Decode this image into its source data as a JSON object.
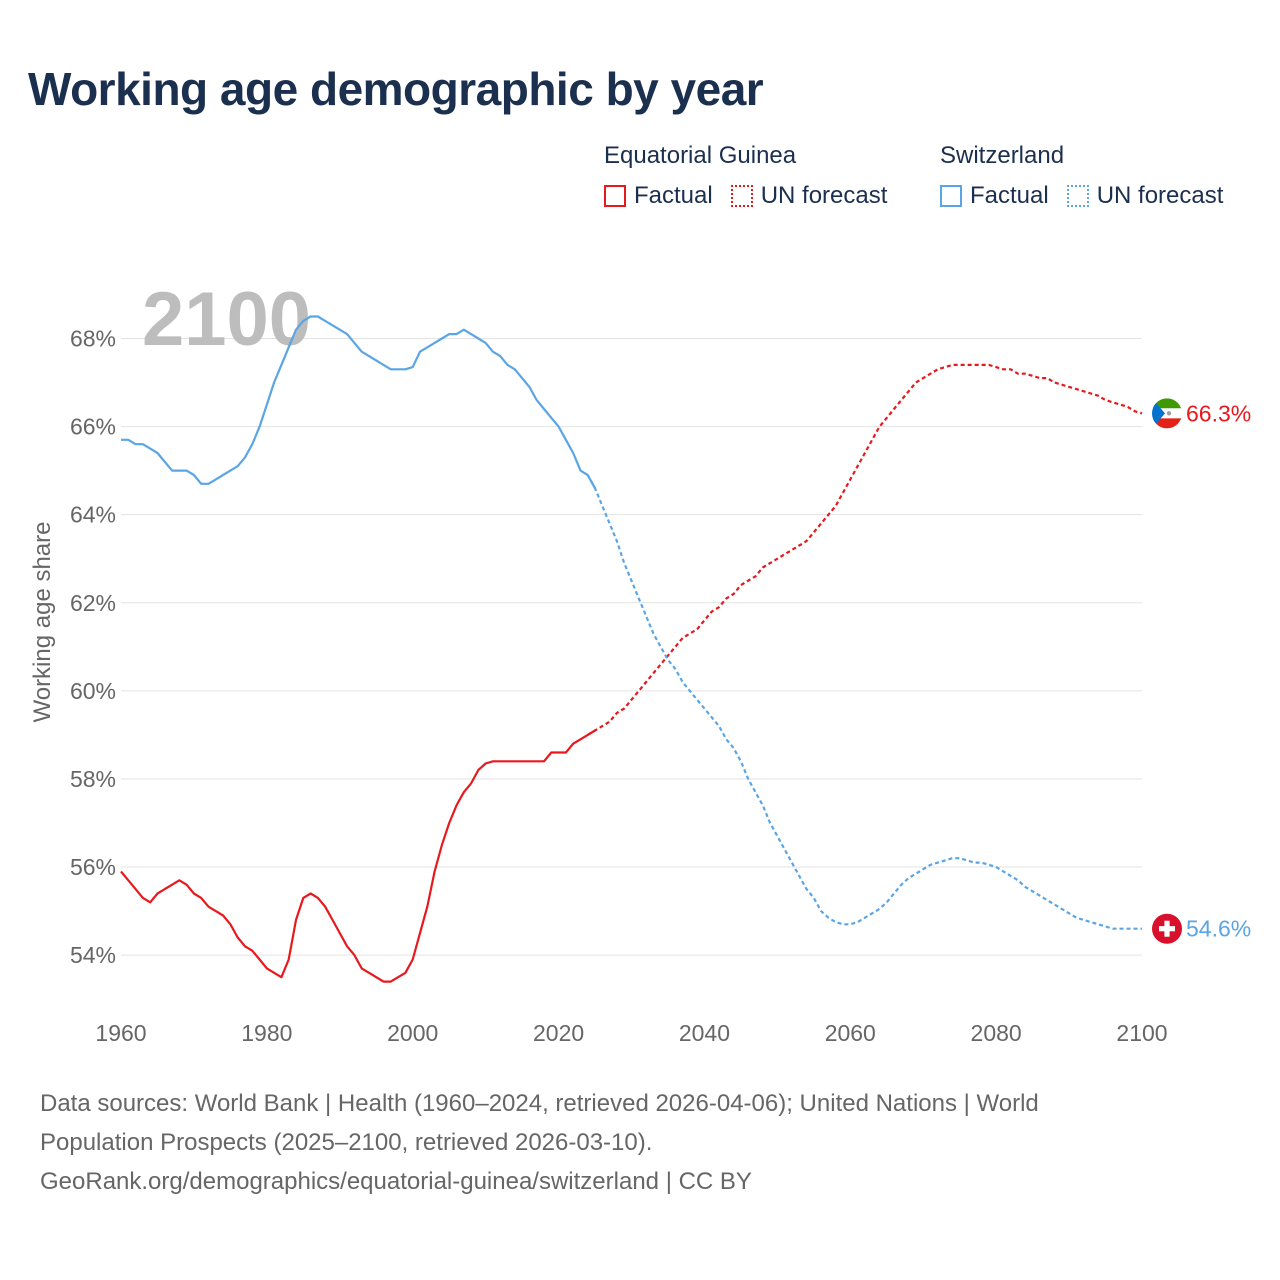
{
  "title": "Working age demographic by year",
  "legend": {
    "groups": [
      {
        "name": "Equatorial Guinea",
        "factual": "Factual",
        "forecast": "UN forecast",
        "color": "#e8191d"
      },
      {
        "name": "Switzerland",
        "factual": "Factual",
        "forecast": "UN forecast",
        "color": "#5aa5e6"
      }
    ]
  },
  "footer": {
    "line1": "Data sources: World Bank | Health (1960–2024, retrieved 2026-04-06); United Nations | World",
    "line2": "Population Prospects (2025–2100, retrieved 2026-03-10).",
    "line3": "GeoRank.org/demographics/equatorial-guinea/switzerland | CC BY"
  },
  "chart_data": {
    "type": "line",
    "title": "Working age demographic by year",
    "year_label": "2100",
    "ylabel": "Working age share",
    "xlabel": "",
    "xlim": [
      1960,
      2100
    ],
    "ylim": [
      52.8,
      69.6
    ],
    "x_ticks": [
      1960,
      1980,
      2000,
      2020,
      2040,
      2060,
      2080,
      2100
    ],
    "x_tick_labels": [
      "1960",
      "1980",
      "2000",
      "2020",
      "2040",
      "2060",
      "2080",
      "2100"
    ],
    "y_ticks": [
      54,
      56,
      58,
      60,
      62,
      64,
      66,
      68
    ],
    "y_tick_labels": [
      "54%",
      "56%",
      "58%",
      "60%",
      "62%",
      "64%",
      "66%",
      "68%"
    ],
    "forecast_start": 2025,
    "series": [
      {
        "name": "Equatorial Guinea",
        "color": "#e8191d",
        "end_label": "66.3%",
        "flag": "equatorial-guinea",
        "points": [
          [
            1960,
            55.9
          ],
          [
            1961,
            55.7
          ],
          [
            1962,
            55.5
          ],
          [
            1963,
            55.3
          ],
          [
            1964,
            55.2
          ],
          [
            1965,
            55.4
          ],
          [
            1966,
            55.5
          ],
          [
            1967,
            55.6
          ],
          [
            1968,
            55.7
          ],
          [
            1969,
            55.6
          ],
          [
            1970,
            55.4
          ],
          [
            1971,
            55.3
          ],
          [
            1972,
            55.1
          ],
          [
            1973,
            55.0
          ],
          [
            1974,
            54.9
          ],
          [
            1975,
            54.7
          ],
          [
            1976,
            54.4
          ],
          [
            1977,
            54.2
          ],
          [
            1978,
            54.1
          ],
          [
            1979,
            53.9
          ],
          [
            1980,
            53.7
          ],
          [
            1981,
            53.6
          ],
          [
            1982,
            53.5
          ],
          [
            1983,
            53.9
          ],
          [
            1984,
            54.8
          ],
          [
            1985,
            55.3
          ],
          [
            1986,
            55.4
          ],
          [
            1987,
            55.3
          ],
          [
            1988,
            55.1
          ],
          [
            1989,
            54.8
          ],
          [
            1990,
            54.5
          ],
          [
            1991,
            54.2
          ],
          [
            1992,
            54.0
          ],
          [
            1993,
            53.7
          ],
          [
            1994,
            53.6
          ],
          [
            1995,
            53.5
          ],
          [
            1996,
            53.4
          ],
          [
            1997,
            53.4
          ],
          [
            1998,
            53.5
          ],
          [
            1999,
            53.6
          ],
          [
            2000,
            53.9
          ],
          [
            2001,
            54.5
          ],
          [
            2002,
            55.1
          ],
          [
            2003,
            55.9
          ],
          [
            2004,
            56.5
          ],
          [
            2005,
            57.0
          ],
          [
            2006,
            57.4
          ],
          [
            2007,
            57.7
          ],
          [
            2008,
            57.9
          ],
          [
            2009,
            58.2
          ],
          [
            2010,
            58.35
          ],
          [
            2011,
            58.4
          ],
          [
            2012,
            58.4
          ],
          [
            2013,
            58.4
          ],
          [
            2014,
            58.4
          ],
          [
            2015,
            58.4
          ],
          [
            2016,
            58.4
          ],
          [
            2017,
            58.4
          ],
          [
            2018,
            58.4
          ],
          [
            2019,
            58.6
          ],
          [
            2020,
            58.6
          ],
          [
            2021,
            58.6
          ],
          [
            2022,
            58.8
          ],
          [
            2023,
            58.9
          ],
          [
            2024,
            59.0
          ],
          [
            2025,
            59.1
          ],
          [
            2026,
            59.2
          ],
          [
            2027,
            59.3
          ],
          [
            2028,
            59.5
          ],
          [
            2029,
            59.6
          ],
          [
            2030,
            59.8
          ],
          [
            2031,
            60.0
          ],
          [
            2032,
            60.2
          ],
          [
            2033,
            60.4
          ],
          [
            2034,
            60.6
          ],
          [
            2035,
            60.8
          ],
          [
            2036,
            61.0
          ],
          [
            2037,
            61.2
          ],
          [
            2038,
            61.3
          ],
          [
            2039,
            61.4
          ],
          [
            2040,
            61.6
          ],
          [
            2041,
            61.8
          ],
          [
            2042,
            61.9
          ],
          [
            2043,
            62.1
          ],
          [
            2044,
            62.2
          ],
          [
            2045,
            62.4
          ],
          [
            2046,
            62.5
          ],
          [
            2047,
            62.6
          ],
          [
            2048,
            62.8
          ],
          [
            2049,
            62.9
          ],
          [
            2050,
            63.0
          ],
          [
            2051,
            63.1
          ],
          [
            2052,
            63.2
          ],
          [
            2053,
            63.3
          ],
          [
            2054,
            63.4
          ],
          [
            2055,
            63.6
          ],
          [
            2056,
            63.8
          ],
          [
            2057,
            64.0
          ],
          [
            2058,
            64.2
          ],
          [
            2059,
            64.5
          ],
          [
            2060,
            64.8
          ],
          [
            2061,
            65.1
          ],
          [
            2062,
            65.4
          ],
          [
            2063,
            65.7
          ],
          [
            2064,
            66.0
          ],
          [
            2065,
            66.2
          ],
          [
            2066,
            66.4
          ],
          [
            2067,
            66.6
          ],
          [
            2068,
            66.8
          ],
          [
            2069,
            67.0
          ],
          [
            2070,
            67.1
          ],
          [
            2071,
            67.2
          ],
          [
            2072,
            67.3
          ],
          [
            2073,
            67.35
          ],
          [
            2074,
            67.4
          ],
          [
            2075,
            67.4
          ],
          [
            2076,
            67.4
          ],
          [
            2077,
            67.4
          ],
          [
            2078,
            67.4
          ],
          [
            2079,
            67.4
          ],
          [
            2080,
            67.35
          ],
          [
            2081,
            67.3
          ],
          [
            2082,
            67.3
          ],
          [
            2083,
            67.2
          ],
          [
            2084,
            67.2
          ],
          [
            2085,
            67.15
          ],
          [
            2086,
            67.1
          ],
          [
            2087,
            67.1
          ],
          [
            2088,
            67.0
          ],
          [
            2089,
            66.95
          ],
          [
            2090,
            66.9
          ],
          [
            2091,
            66.85
          ],
          [
            2092,
            66.8
          ],
          [
            2093,
            66.75
          ],
          [
            2094,
            66.7
          ],
          [
            2095,
            66.6
          ],
          [
            2096,
            66.55
          ],
          [
            2097,
            66.5
          ],
          [
            2098,
            66.45
          ],
          [
            2099,
            66.35
          ],
          [
            2100,
            66.3
          ]
        ]
      },
      {
        "name": "Switzerland",
        "color": "#5aa5e6",
        "end_label": "54.6%",
        "flag": "switzerland",
        "points": [
          [
            1960,
            65.7
          ],
          [
            1961,
            65.7
          ],
          [
            1962,
            65.6
          ],
          [
            1963,
            65.6
          ],
          [
            1964,
            65.5
          ],
          [
            1965,
            65.4
          ],
          [
            1966,
            65.2
          ],
          [
            1967,
            65.0
          ],
          [
            1968,
            65.0
          ],
          [
            1969,
            65.0
          ],
          [
            1970,
            64.9
          ],
          [
            1971,
            64.7
          ],
          [
            1972,
            64.7
          ],
          [
            1973,
            64.8
          ],
          [
            1974,
            64.9
          ],
          [
            1975,
            65.0
          ],
          [
            1976,
            65.1
          ],
          [
            1977,
            65.3
          ],
          [
            1978,
            65.6
          ],
          [
            1979,
            66.0
          ],
          [
            1980,
            66.5
          ],
          [
            1981,
            67.0
          ],
          [
            1982,
            67.4
          ],
          [
            1983,
            67.8
          ],
          [
            1984,
            68.2
          ],
          [
            1985,
            68.4
          ],
          [
            1986,
            68.5
          ],
          [
            1987,
            68.5
          ],
          [
            1988,
            68.4
          ],
          [
            1989,
            68.3
          ],
          [
            1990,
            68.2
          ],
          [
            1991,
            68.1
          ],
          [
            1992,
            67.9
          ],
          [
            1993,
            67.7
          ],
          [
            1994,
            67.6
          ],
          [
            1995,
            67.5
          ],
          [
            1996,
            67.4
          ],
          [
            1997,
            67.3
          ],
          [
            1998,
            67.3
          ],
          [
            1999,
            67.3
          ],
          [
            2000,
            67.35
          ],
          [
            2001,
            67.7
          ],
          [
            2002,
            67.8
          ],
          [
            2003,
            67.9
          ],
          [
            2004,
            68.0
          ],
          [
            2005,
            68.1
          ],
          [
            2006,
            68.1
          ],
          [
            2007,
            68.2
          ],
          [
            2008,
            68.1
          ],
          [
            2009,
            68.0
          ],
          [
            2010,
            67.9
          ],
          [
            2011,
            67.7
          ],
          [
            2012,
            67.6
          ],
          [
            2013,
            67.4
          ],
          [
            2014,
            67.3
          ],
          [
            2015,
            67.1
          ],
          [
            2016,
            66.9
          ],
          [
            2017,
            66.6
          ],
          [
            2018,
            66.4
          ],
          [
            2019,
            66.2
          ],
          [
            2020,
            66.0
          ],
          [
            2021,
            65.7
          ],
          [
            2022,
            65.4
          ],
          [
            2023,
            65.0
          ],
          [
            2024,
            64.9
          ],
          [
            2025,
            64.6
          ],
          [
            2026,
            64.2
          ],
          [
            2027,
            63.8
          ],
          [
            2028,
            63.4
          ],
          [
            2029,
            62.9
          ],
          [
            2030,
            62.5
          ],
          [
            2031,
            62.1
          ],
          [
            2032,
            61.7
          ],
          [
            2033,
            61.3
          ],
          [
            2034,
            61.0
          ],
          [
            2035,
            60.7
          ],
          [
            2036,
            60.5
          ],
          [
            2037,
            60.2
          ],
          [
            2038,
            60.0
          ],
          [
            2039,
            59.8
          ],
          [
            2040,
            59.6
          ],
          [
            2041,
            59.4
          ],
          [
            2042,
            59.2
          ],
          [
            2043,
            58.9
          ],
          [
            2044,
            58.7
          ],
          [
            2045,
            58.4
          ],
          [
            2046,
            58.0
          ],
          [
            2047,
            57.7
          ],
          [
            2048,
            57.4
          ],
          [
            2049,
            57.0
          ],
          [
            2050,
            56.7
          ],
          [
            2051,
            56.4
          ],
          [
            2052,
            56.1
          ],
          [
            2053,
            55.8
          ],
          [
            2054,
            55.5
          ],
          [
            2055,
            55.3
          ],
          [
            2056,
            55.0
          ],
          [
            2057,
            54.85
          ],
          [
            2058,
            54.75
          ],
          [
            2059,
            54.7
          ],
          [
            2060,
            54.7
          ],
          [
            2061,
            54.75
          ],
          [
            2062,
            54.85
          ],
          [
            2063,
            54.95
          ],
          [
            2064,
            55.05
          ],
          [
            2065,
            55.2
          ],
          [
            2066,
            55.4
          ],
          [
            2067,
            55.6
          ],
          [
            2068,
            55.75
          ],
          [
            2069,
            55.85
          ],
          [
            2070,
            55.95
          ],
          [
            2071,
            56.05
          ],
          [
            2072,
            56.1
          ],
          [
            2073,
            56.15
          ],
          [
            2074,
            56.2
          ],
          [
            2075,
            56.2
          ],
          [
            2076,
            56.15
          ],
          [
            2077,
            56.1
          ],
          [
            2078,
            56.1
          ],
          [
            2079,
            56.05
          ],
          [
            2080,
            56.0
          ],
          [
            2081,
            55.9
          ],
          [
            2082,
            55.8
          ],
          [
            2083,
            55.7
          ],
          [
            2084,
            55.55
          ],
          [
            2085,
            55.45
          ],
          [
            2086,
            55.35
          ],
          [
            2087,
            55.25
          ],
          [
            2088,
            55.15
          ],
          [
            2089,
            55.05
          ],
          [
            2090,
            54.95
          ],
          [
            2091,
            54.85
          ],
          [
            2092,
            54.8
          ],
          [
            2093,
            54.75
          ],
          [
            2094,
            54.7
          ],
          [
            2095,
            54.65
          ],
          [
            2096,
            54.6
          ],
          [
            2097,
            54.6
          ],
          [
            2098,
            54.6
          ],
          [
            2099,
            54.6
          ],
          [
            2100,
            54.6
          ]
        ]
      }
    ]
  }
}
